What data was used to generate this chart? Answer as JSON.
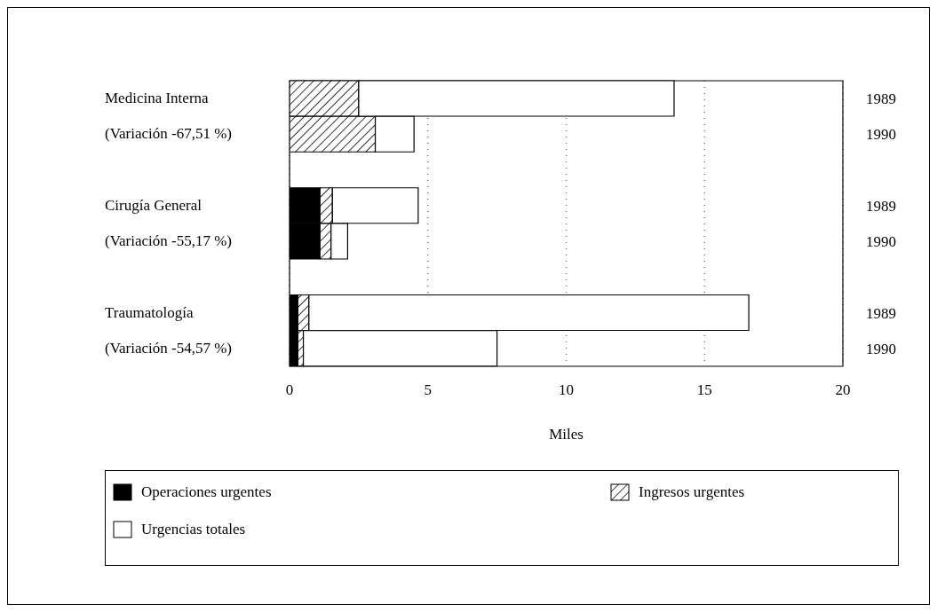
{
  "chart_data": {
    "type": "bar",
    "orientation": "horizontal",
    "stacked": true,
    "categories": [
      "Medicina Interna",
      "(Variación -67,51 %)",
      null,
      "Cirugía General",
      "(Variación -55,17 %)",
      null,
      "Traumatología",
      "(Variación -54,57 %)"
    ],
    "series": [
      {
        "name": "Operaciones urgentes",
        "color": "#000000",
        "values": [
          0,
          0,
          null,
          1.1,
          1.1,
          null,
          0.3,
          0.3
        ]
      },
      {
        "name": "Ingresos urgentes",
        "color": "#000000",
        "values": [
          2.5,
          3.1,
          null,
          0.45,
          0.4,
          null,
          0.4,
          0.2
        ]
      },
      {
        "name": "Urgencias totales",
        "color": "#ffffff",
        "values": [
          11.4,
          1.4,
          null,
          3.1,
          0.6,
          null,
          15.9,
          7.0
        ]
      }
    ],
    "xlabel": "Miles",
    "xlim": [
      0,
      20
    ],
    "xticks": [
      0,
      5,
      10,
      15,
      20
    ],
    "grid": "x",
    "legend": "bottom",
    "annotations": [
      "1989",
      "1990",
      "1989",
      "1990",
      "1989",
      "1990"
    ]
  }
}
